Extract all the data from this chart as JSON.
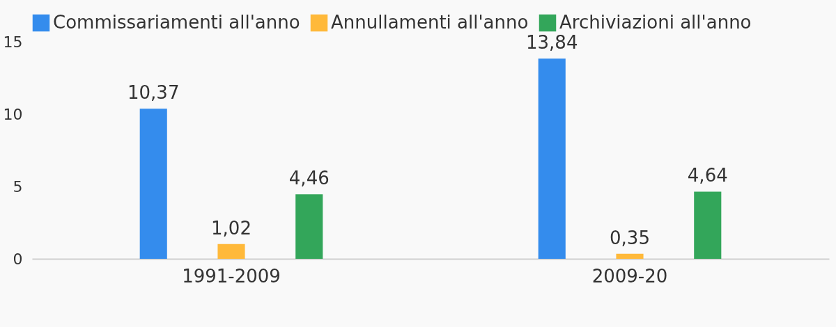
{
  "chart_data": {
    "type": "bar",
    "categories": [
      "1991-2009",
      "2009-20"
    ],
    "series": [
      {
        "name": "Commissariamenti all'anno",
        "color": "#348ced",
        "values": [
          10.37,
          13.84
        ],
        "value_labels": [
          "10,37",
          "13,84"
        ]
      },
      {
        "name": "Annullamenti all'anno",
        "color": "#ffb93a",
        "values": [
          1.02,
          0.35
        ],
        "value_labels": [
          "1,02",
          "0,35"
        ]
      },
      {
        "name": "Archiviazioni all'anno",
        "color": "#33a65a",
        "values": [
          4.46,
          4.64
        ],
        "value_labels": [
          "4,46",
          "4,64"
        ]
      }
    ],
    "ylim": [
      0,
      15
    ],
    "yticks": [
      0,
      5,
      10,
      15
    ],
    "grid": false,
    "legend": "top left"
  }
}
